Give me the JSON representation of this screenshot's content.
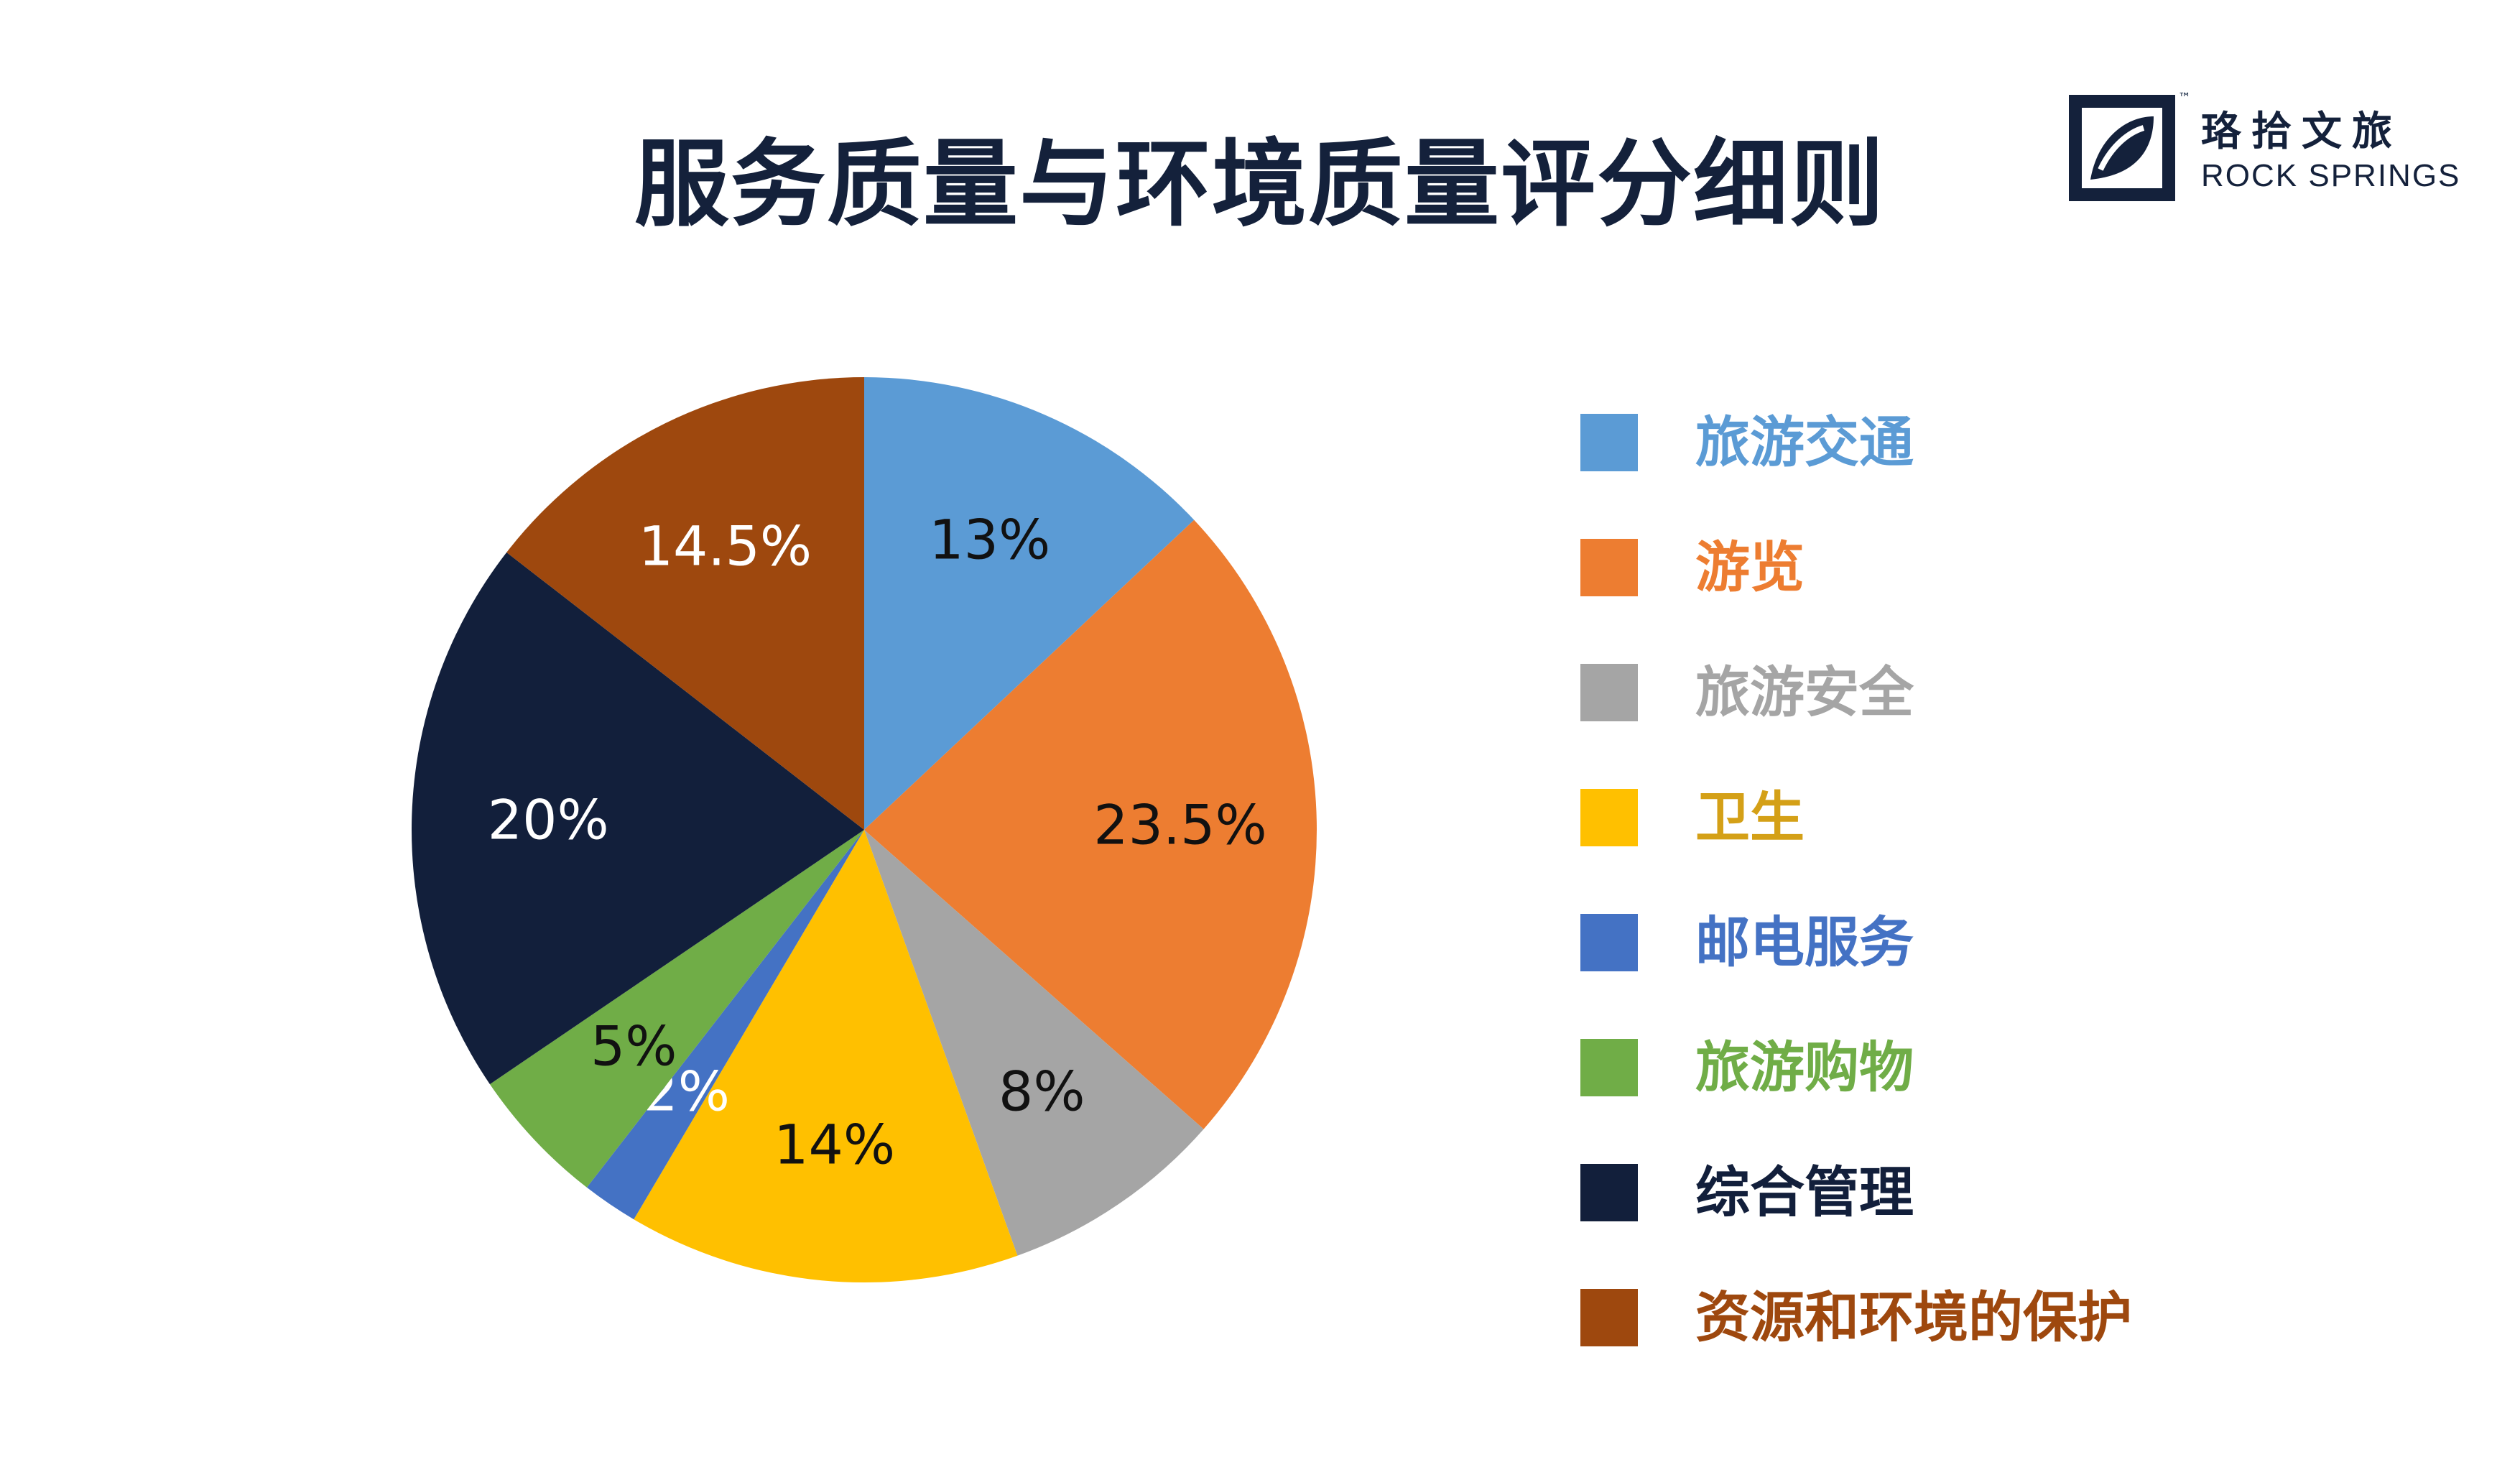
{
  "header": {
    "title": "服务质量与环境质量评分细则"
  },
  "logo": {
    "cn_name": "珞拾文旅",
    "en_name": "ROCK SPRINGS",
    "tm": "™",
    "icon": "rock-springs-logo-icon"
  },
  "chart_data": {
    "type": "pie",
    "title": "服务质量与环境质量评分细则",
    "legend_position": "right",
    "slices": [
      {
        "name": "旅游交通",
        "value": 13,
        "label": "13%",
        "color": "#5b9bd5",
        "label_color": "#111111",
        "legend_color": "#5b9bd5"
      },
      {
        "name": "游览",
        "value": 23.5,
        "label": "23.5%",
        "color": "#ed7d31",
        "label_color": "#111111",
        "legend_color": "#ed7d31"
      },
      {
        "name": "旅游安全",
        "value": 8,
        "label": "8%",
        "color": "#a5a5a5",
        "label_color": "#111111",
        "legend_color": "#a5a5a5"
      },
      {
        "name": "卫生",
        "value": 14,
        "label": "14%",
        "color": "#ffc000",
        "label_color": "#111111",
        "legend_color": "#d4a017"
      },
      {
        "name": "邮电服务",
        "value": 2,
        "label": "2%",
        "color": "#4472c4",
        "label_color": "#ffffff",
        "legend_color": "#4472c4"
      },
      {
        "name": "旅游购物",
        "value": 5,
        "label": "5%",
        "color": "#70ad47",
        "label_color": "#111111",
        "legend_color": "#70ad47"
      },
      {
        "name": "综合管理",
        "value": 20,
        "label": "20%",
        "color": "#121f3b",
        "label_color": "#ffffff",
        "legend_color": "#121f3b"
      },
      {
        "name": "资源和环境的保护",
        "value": 14.5,
        "label": "14.5%",
        "color": "#9e480e",
        "label_color": "#ffffff",
        "legend_color": "#9e480e"
      }
    ]
  }
}
